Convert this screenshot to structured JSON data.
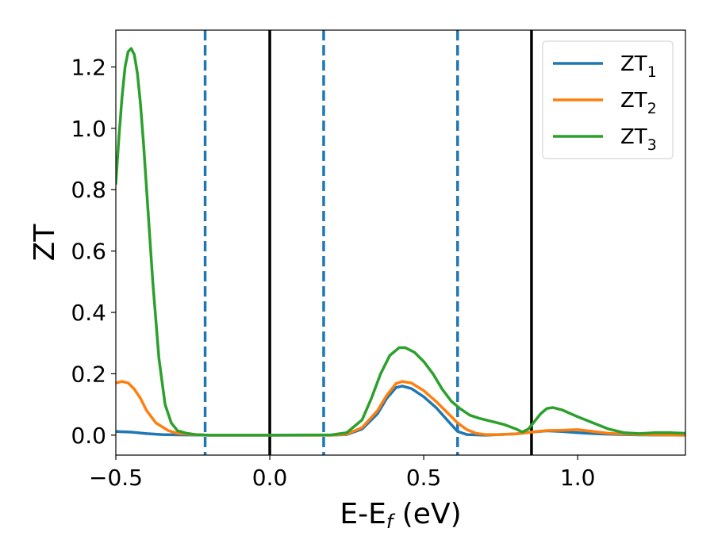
{
  "chart_data": {
    "type": "line",
    "title": "",
    "xlabel": {
      "main": "E-E",
      "sub": "f",
      "suffix": " (eV)"
    },
    "ylabel": "ZT",
    "xlim": [
      -0.5,
      1.35
    ],
    "ylim": [
      -0.065,
      1.32
    ],
    "xticks": [
      {
        "value": -0.5,
        "label": "−0.5"
      },
      {
        "value": 0.0,
        "label": "0.0"
      },
      {
        "value": 0.5,
        "label": "0.5"
      },
      {
        "value": 1.0,
        "label": "1.0"
      }
    ],
    "yticks": [
      {
        "value": 0.0,
        "label": "0.0"
      },
      {
        "value": 0.2,
        "label": "0.2"
      },
      {
        "value": 0.4,
        "label": "0.4"
      },
      {
        "value": 0.6,
        "label": "0.6"
      },
      {
        "value": 0.8,
        "label": "0.8"
      },
      {
        "value": 1.0,
        "label": "1.0"
      },
      {
        "value": 1.2,
        "label": "1.2"
      }
    ],
    "grid": false,
    "legend_position": "top-right",
    "vlines": [
      {
        "x": 0.0,
        "style": "solid",
        "color": "#000000"
      },
      {
        "x": 0.85,
        "style": "solid",
        "color": "#000000"
      },
      {
        "x": -0.21,
        "style": "dashed",
        "color": "#1f77b4"
      },
      {
        "x": 0.175,
        "style": "dashed",
        "color": "#1f77b4"
      },
      {
        "x": 0.61,
        "style": "dashed",
        "color": "#1f77b4"
      }
    ],
    "series": [
      {
        "name": "ZT",
        "sub": "1",
        "color": "#1f77b4",
        "points": [
          [
            -0.5,
            0.012
          ],
          [
            -0.45,
            0.01
          ],
          [
            -0.4,
            0.005
          ],
          [
            -0.35,
            0.002
          ],
          [
            -0.3,
            0.001
          ],
          [
            -0.2,
            0
          ],
          [
            0.0,
            0
          ],
          [
            0.2,
            0
          ],
          [
            0.25,
            0.002
          ],
          [
            0.3,
            0.02
          ],
          [
            0.35,
            0.07
          ],
          [
            0.38,
            0.12
          ],
          [
            0.41,
            0.155
          ],
          [
            0.43,
            0.16
          ],
          [
            0.46,
            0.152
          ],
          [
            0.5,
            0.125
          ],
          [
            0.54,
            0.09
          ],
          [
            0.58,
            0.045
          ],
          [
            0.61,
            0.012
          ],
          [
            0.64,
            0.002
          ],
          [
            0.7,
            0
          ],
          [
            0.8,
            0.004
          ],
          [
            0.85,
            0.01
          ],
          [
            0.9,
            0.014
          ],
          [
            0.95,
            0.012
          ],
          [
            1.0,
            0.008
          ],
          [
            1.05,
            0.005
          ],
          [
            1.1,
            0.003
          ],
          [
            1.2,
            0.001
          ],
          [
            1.35,
            0.0
          ]
        ]
      },
      {
        "name": "ZT",
        "sub": "2",
        "color": "#ff7f0e",
        "points": [
          [
            -0.5,
            0.17
          ],
          [
            -0.48,
            0.175
          ],
          [
            -0.46,
            0.17
          ],
          [
            -0.44,
            0.15
          ],
          [
            -0.42,
            0.12
          ],
          [
            -0.4,
            0.08
          ],
          [
            -0.37,
            0.04
          ],
          [
            -0.33,
            0.015
          ],
          [
            -0.3,
            0.006
          ],
          [
            -0.25,
            0.002
          ],
          [
            -0.2,
            0
          ],
          [
            0.0,
            0
          ],
          [
            0.2,
            0
          ],
          [
            0.25,
            0.003
          ],
          [
            0.3,
            0.025
          ],
          [
            0.35,
            0.08
          ],
          [
            0.38,
            0.13
          ],
          [
            0.41,
            0.168
          ],
          [
            0.43,
            0.175
          ],
          [
            0.46,
            0.17
          ],
          [
            0.5,
            0.145
          ],
          [
            0.54,
            0.11
          ],
          [
            0.58,
            0.07
          ],
          [
            0.61,
            0.04
          ],
          [
            0.64,
            0.018
          ],
          [
            0.67,
            0.006
          ],
          [
            0.7,
            0.002
          ],
          [
            0.75,
            0.002
          ],
          [
            0.8,
            0.004
          ],
          [
            0.85,
            0.01
          ],
          [
            0.9,
            0.015
          ],
          [
            0.95,
            0.016
          ],
          [
            1.0,
            0.018
          ],
          [
            1.05,
            0.012
          ],
          [
            1.1,
            0.006
          ],
          [
            1.2,
            0.002
          ],
          [
            1.35,
            0.0
          ]
        ]
      },
      {
        "name": "ZT",
        "sub": "3",
        "color": "#2ca02c",
        "points": [
          [
            -0.5,
            0.82
          ],
          [
            -0.49,
            0.97
          ],
          [
            -0.48,
            1.1
          ],
          [
            -0.47,
            1.2
          ],
          [
            -0.46,
            1.25
          ],
          [
            -0.45,
            1.26
          ],
          [
            -0.44,
            1.24
          ],
          [
            -0.43,
            1.18
          ],
          [
            -0.42,
            1.08
          ],
          [
            -0.41,
            0.95
          ],
          [
            -0.4,
            0.8
          ],
          [
            -0.38,
            0.5
          ],
          [
            -0.36,
            0.25
          ],
          [
            -0.34,
            0.1
          ],
          [
            -0.32,
            0.04
          ],
          [
            -0.3,
            0.015
          ],
          [
            -0.27,
            0.006
          ],
          [
            -0.24,
            0.002
          ],
          [
            -0.2,
            0
          ],
          [
            0.0,
            0
          ],
          [
            0.2,
            0.001
          ],
          [
            0.25,
            0.008
          ],
          [
            0.3,
            0.05
          ],
          [
            0.33,
            0.12
          ],
          [
            0.36,
            0.2
          ],
          [
            0.39,
            0.26
          ],
          [
            0.42,
            0.285
          ],
          [
            0.44,
            0.285
          ],
          [
            0.47,
            0.27
          ],
          [
            0.5,
            0.24
          ],
          [
            0.53,
            0.2
          ],
          [
            0.56,
            0.15
          ],
          [
            0.59,
            0.11
          ],
          [
            0.62,
            0.085
          ],
          [
            0.65,
            0.065
          ],
          [
            0.68,
            0.055
          ],
          [
            0.72,
            0.045
          ],
          [
            0.76,
            0.035
          ],
          [
            0.8,
            0.02
          ],
          [
            0.82,
            0.01
          ],
          [
            0.84,
            0.02
          ],
          [
            0.86,
            0.045
          ],
          [
            0.88,
            0.07
          ],
          [
            0.9,
            0.087
          ],
          [
            0.92,
            0.09
          ],
          [
            0.95,
            0.082
          ],
          [
            1.0,
            0.06
          ],
          [
            1.05,
            0.04
          ],
          [
            1.1,
            0.02
          ],
          [
            1.15,
            0.008
          ],
          [
            1.2,
            0.005
          ],
          [
            1.25,
            0.008
          ],
          [
            1.3,
            0.008
          ],
          [
            1.35,
            0.006
          ]
        ]
      }
    ]
  }
}
